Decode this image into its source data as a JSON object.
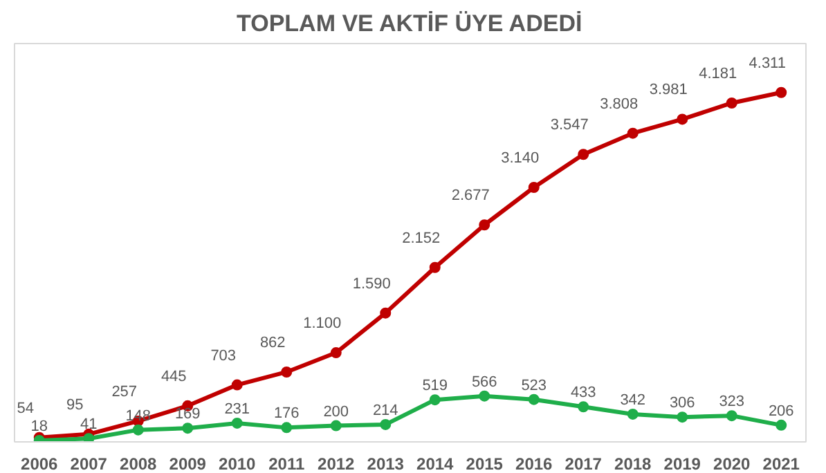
{
  "chart_data": {
    "type": "line",
    "title": "TOPLAM VE AKTİF ÜYE ADEDİ",
    "categories": [
      "2006",
      "2007",
      "2008",
      "2009",
      "2010",
      "2011",
      "2012",
      "2013",
      "2014",
      "2015",
      "2016",
      "2017",
      "2018",
      "2019",
      "2020",
      "2021"
    ],
    "series": [
      {
        "color": "#c00000",
        "values": [
          54,
          95,
          257,
          445,
          703,
          862,
          1100,
          1590,
          2152,
          2677,
          3140,
          3547,
          3808,
          3981,
          4181,
          4311
        ],
        "value_labels": [
          "54",
          "95",
          "257",
          "445",
          "703",
          "862",
          "1.100",
          "1.590",
          "2.152",
          "2.677",
          "3.140",
          "3.547",
          "3.808",
          "3.981",
          "4.181",
          "4.311"
        ]
      },
      {
        "color": "#1fae4a",
        "values": [
          18,
          41,
          148,
          169,
          231,
          176,
          200,
          214,
          519,
          566,
          523,
          433,
          342,
          306,
          323,
          206
        ],
        "value_labels": [
          "18",
          "41",
          "148",
          "169",
          "231",
          "176",
          "200",
          "214",
          "519",
          "566",
          "523",
          "433",
          "342",
          "306",
          "323",
          "206"
        ]
      }
    ],
    "marker": "circle",
    "grid": false,
    "tick_labels": "x"
  }
}
